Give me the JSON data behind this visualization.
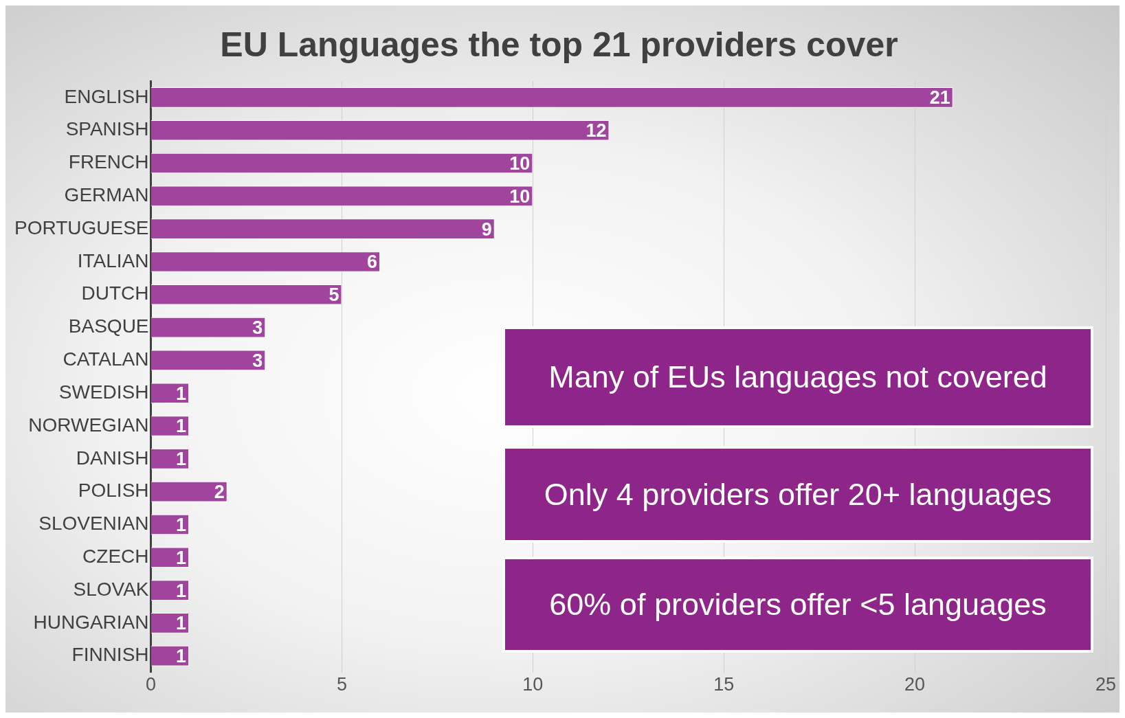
{
  "chart_data": {
    "type": "bar",
    "orientation": "horizontal",
    "title": "EU Languages the top 21 providers cover",
    "categories": [
      "ENGLISH",
      "SPANISH",
      "FRENCH",
      "GERMAN",
      "PORTUGUESE",
      "ITALIAN",
      "DUTCH",
      "BASQUE",
      "CATALAN",
      "SWEDISH",
      "NORWEGIAN",
      "DANISH",
      "POLISH",
      "SLOVENIAN",
      "CZECH",
      "SLOVAK",
      "HUNGARIAN",
      "FINNISH"
    ],
    "values": [
      21,
      12,
      10,
      10,
      9,
      6,
      5,
      3,
      3,
      1,
      1,
      1,
      2,
      1,
      1,
      1,
      1,
      1
    ],
    "color": "#a0449e",
    "xlim": [
      0,
      25
    ],
    "xticks": [
      0,
      5,
      10,
      15,
      20,
      25
    ],
    "grid": "x",
    "legend": false,
    "data_labels": true,
    "annotations": [
      "Many of EUs languages not covered",
      "Only 4 providers offer 20+ languages",
      "60% of providers offer <5 languages"
    ]
  }
}
